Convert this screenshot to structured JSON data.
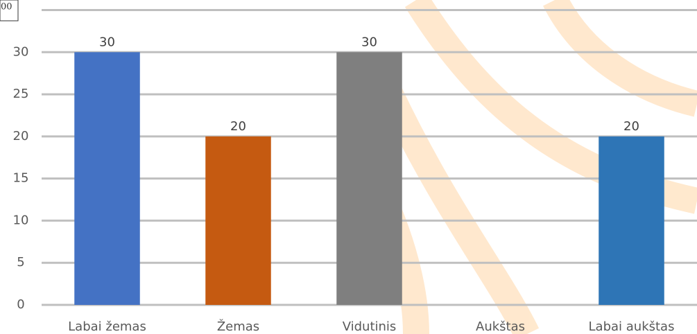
{
  "chart_data": {
    "type": "bar",
    "corner_label": "00",
    "categories": [
      "Labai žemas",
      "Žemas",
      "Vidutinis",
      "Aukštas",
      "Labai aukštas"
    ],
    "values": [
      30,
      20,
      30,
      null,
      20
    ],
    "colors": [
      "#4472c4",
      "#c55a11",
      "#7f7f7f",
      "#a5a5a5",
      "#2e75b6"
    ],
    "ylim": [
      0,
      35
    ],
    "yticks": [
      0,
      5,
      10,
      15,
      20,
      25,
      30
    ],
    "grid": true
  }
}
